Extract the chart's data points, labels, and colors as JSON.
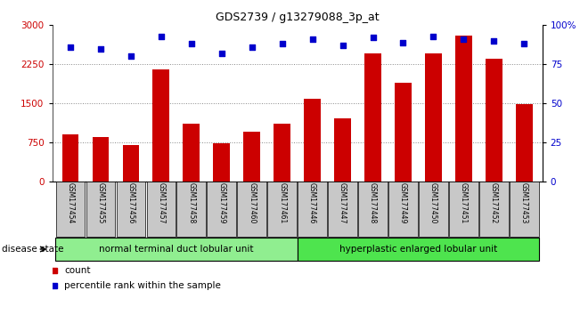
{
  "title": "GDS2739 / g13279088_3p_at",
  "samples": [
    "GSM177454",
    "GSM177455",
    "GSM177456",
    "GSM177457",
    "GSM177458",
    "GSM177459",
    "GSM177460",
    "GSM177461",
    "GSM177446",
    "GSM177447",
    "GSM177448",
    "GSM177449",
    "GSM177450",
    "GSM177451",
    "GSM177452",
    "GSM177453"
  ],
  "counts": [
    900,
    840,
    700,
    2150,
    1100,
    720,
    950,
    1100,
    1580,
    1200,
    2450,
    1900,
    2450,
    2800,
    2350,
    1480
  ],
  "percentiles": [
    86,
    85,
    80,
    93,
    88,
    82,
    86,
    88,
    91,
    87,
    92,
    89,
    93,
    91,
    90,
    88
  ],
  "disease_groups": [
    {
      "label": "normal terminal duct lobular unit",
      "start": 0,
      "end": 8,
      "color": "#90EE90"
    },
    {
      "label": "hyperplastic enlarged lobular unit",
      "start": 8,
      "end": 16,
      "color": "#4EE44E"
    }
  ],
  "left_ylim": [
    0,
    3000
  ],
  "right_ylim": [
    0,
    100
  ],
  "left_yticks": [
    0,
    750,
    1500,
    2250,
    3000
  ],
  "right_yticks": [
    0,
    25,
    50,
    75,
    100
  ],
  "right_yticklabels": [
    "0",
    "25",
    "50",
    "75",
    "100%"
  ],
  "bar_color": "#CC0000",
  "dot_color": "#0000CC",
  "grid_color": "#888888",
  "tick_label_bg": "#C8C8C8",
  "disease_state_label": "disease state",
  "legend_count_label": "count",
  "legend_percentile_label": "percentile rank within the sample"
}
